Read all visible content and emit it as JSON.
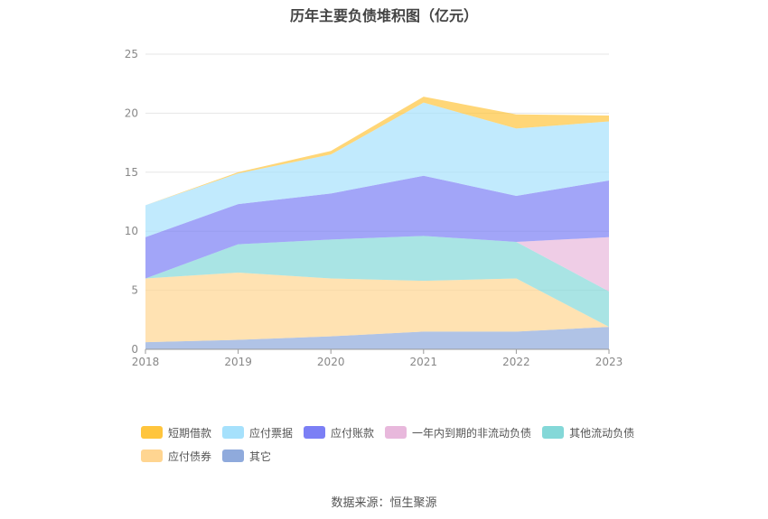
{
  "chart_data": {
    "type": "area",
    "stacked": true,
    "title": "历年主要负债堆积图（亿元）",
    "source": "数据来源：恒生聚源",
    "categories": [
      "2018",
      "2019",
      "2020",
      "2021",
      "2022",
      "2023"
    ],
    "ylim": [
      0,
      25
    ],
    "yticks": [
      0,
      5,
      10,
      15,
      20,
      25
    ],
    "grid": true,
    "legend_position": "bottom",
    "series": [
      {
        "name": "其它",
        "color": "#8FAADC",
        "values": [
          0.6,
          0.8,
          1.1,
          1.5,
          1.5,
          1.9
        ]
      },
      {
        "name": "应付债券",
        "color": "#FFD591",
        "values": [
          5.4,
          5.7,
          4.9,
          4.3,
          4.5,
          0.0
        ]
      },
      {
        "name": "其他流动负债",
        "color": "#84D8D8",
        "values": [
          0.0,
          2.4,
          3.3,
          3.8,
          3.1,
          3.0
        ]
      },
      {
        "name": "一年内到期的非流动负债",
        "color": "#E8B8DC",
        "values": [
          0.0,
          0.0,
          0.0,
          0.0,
          0.0,
          4.6
        ]
      },
      {
        "name": "应付账款",
        "color": "#7B7FF5",
        "values": [
          3.5,
          3.4,
          3.9,
          5.1,
          3.9,
          4.8
        ]
      },
      {
        "name": "应付票据",
        "color": "#A6E1FC",
        "values": [
          2.7,
          2.6,
          3.3,
          6.2,
          5.7,
          5.0
        ]
      },
      {
        "name": "短期借款",
        "color": "#FFC53D",
        "values": [
          0.0,
          0.1,
          0.3,
          0.5,
          1.2,
          0.5
        ]
      }
    ],
    "legend_order": [
      "短期借款",
      "应付票据",
      "应付账款",
      "一年内到期的非流动负债",
      "其他流动负债",
      "应付债券",
      "其它"
    ]
  }
}
